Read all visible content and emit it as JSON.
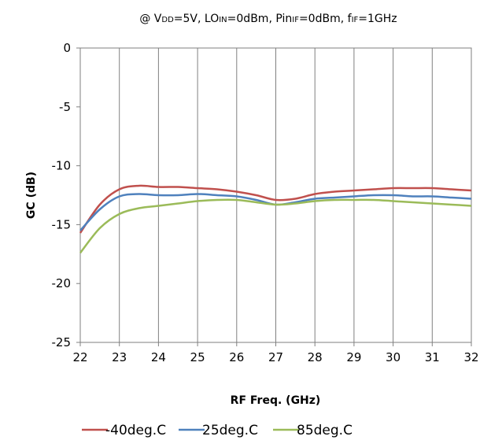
{
  "chart_data": {
    "type": "line",
    "title_parts": [
      "@ V",
      "DD",
      "=5V, LO",
      "IN",
      "=0dBm, Pin",
      "IF",
      "=0dBm, f",
      "IF",
      "=1GHz"
    ],
    "xlabel": "RF Freq. (GHz)",
    "ylabel": "GC (dB)",
    "xlim": [
      22,
      32
    ],
    "ylim": [
      -25,
      0
    ],
    "x_ticks": [
      "22",
      "23",
      "24",
      "25",
      "26",
      "27",
      "28",
      "29",
      "30",
      "31",
      "32"
    ],
    "y_ticks": [
      "0",
      "-5",
      "-10",
      "-15",
      "-20",
      "-25"
    ],
    "grid": "vertical",
    "legend_position": "bottom",
    "x": [
      22,
      22.5,
      23,
      23.5,
      24,
      24.5,
      25,
      25.5,
      26,
      26.5,
      27,
      27.5,
      28,
      28.5,
      29,
      29.5,
      30,
      30.5,
      31,
      31.5,
      32
    ],
    "series": [
      {
        "name": "-40deg.C",
        "color": "#c0504d",
        "values": [
          -15.7,
          -13.3,
          -12.0,
          -11.7,
          -11.8,
          -11.8,
          -11.9,
          -12.0,
          -12.2,
          -12.5,
          -12.9,
          -12.8,
          -12.4,
          -12.2,
          -12.1,
          -12.0,
          -11.9,
          -11.9,
          -11.9,
          -12.0,
          -12.1
        ]
      },
      {
        "name": "25deg.C",
        "color": "#4f81bd",
        "values": [
          -15.5,
          -13.7,
          -12.6,
          -12.4,
          -12.5,
          -12.5,
          -12.4,
          -12.5,
          -12.6,
          -12.9,
          -13.3,
          -13.1,
          -12.8,
          -12.7,
          -12.6,
          -12.5,
          -12.5,
          -12.6,
          -12.6,
          -12.7,
          -12.8
        ]
      },
      {
        "name": "85deg.C",
        "color": "#9bbb59",
        "values": [
          -17.4,
          -15.3,
          -14.1,
          -13.6,
          -13.4,
          -13.2,
          -13.0,
          -12.9,
          -12.9,
          -13.1,
          -13.3,
          -13.2,
          -13.0,
          -12.9,
          -12.9,
          -12.9,
          -13.0,
          -13.1,
          -13.2,
          -13.3,
          -13.4
        ]
      }
    ]
  }
}
